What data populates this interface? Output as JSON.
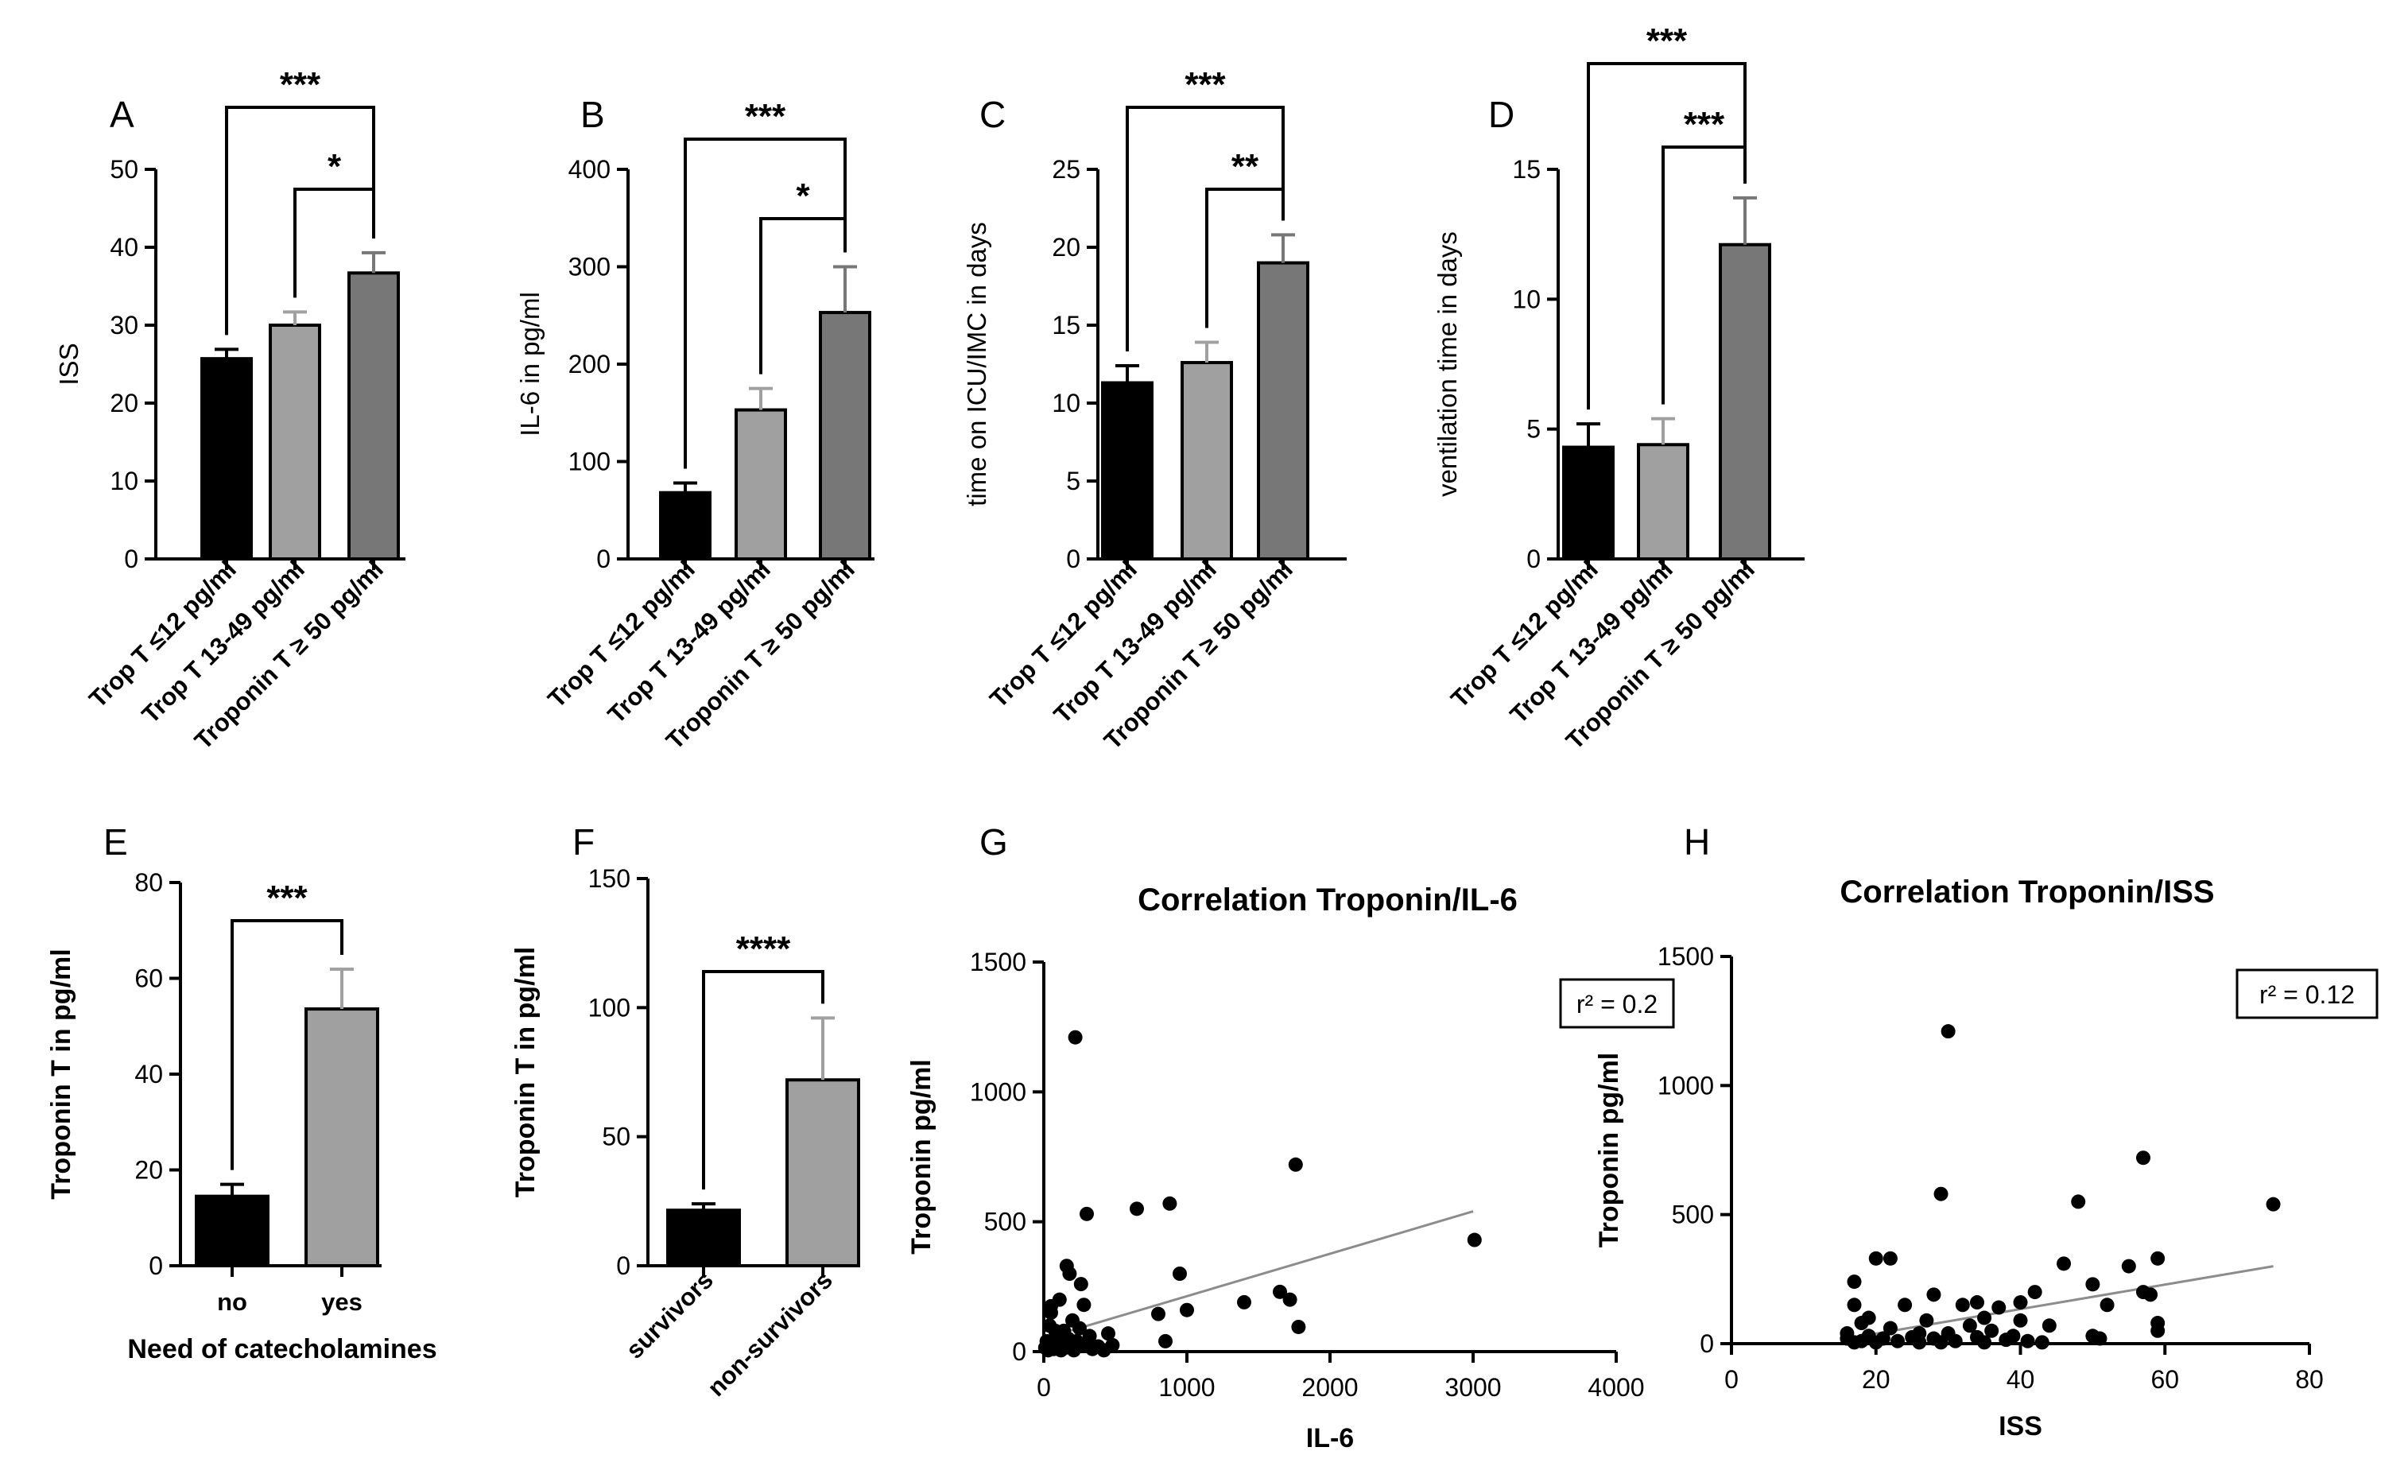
{
  "figure": {
    "background": "#ffffff"
  },
  "colors": {
    "black": "#000000",
    "light_gray": "#a0a0a0",
    "dark_gray": "#777777",
    "regression": "#8c8c8c",
    "points": "#000000"
  },
  "chart_data": [
    {
      "panel": "A",
      "type": "bar",
      "categories": [
        "Trop T ≤12 pg/ml",
        "Trop T 13-49 pg/ml",
        "Troponin T ≥ 50 pg/ml"
      ],
      "values": [
        25.7,
        30.0,
        36.7
      ],
      "errors": [
        1.2,
        1.7,
        2.6
      ],
      "colors": [
        "#000000",
        "#a0a0a0",
        "#777777"
      ],
      "ylabel": "ISS",
      "ylim": [
        0,
        50
      ],
      "yticks": [
        "0",
        "10",
        "20",
        "30",
        "40",
        "50"
      ],
      "brackets": [
        {
          "from": 0,
          "to": 2,
          "label": "***"
        },
        {
          "from": 1,
          "to": 2,
          "label": "*"
        }
      ]
    },
    {
      "panel": "B",
      "type": "bar",
      "categories": [
        "Trop T ≤12 pg/ml",
        "Trop T 13-49 pg/ml",
        "Troponin T ≥ 50 pg/ml"
      ],
      "values": [
        68,
        153,
        253
      ],
      "errors": [
        10,
        22,
        47
      ],
      "colors": [
        "#000000",
        "#a0a0a0",
        "#777777"
      ],
      "ylabel": "IL-6 in pg/ml",
      "ylim": [
        0,
        400
      ],
      "yticks": [
        "0",
        "100",
        "200",
        "300",
        "400"
      ],
      "brackets": [
        {
          "from": 0,
          "to": 2,
          "label": "***"
        },
        {
          "from": 1,
          "to": 2,
          "label": "*"
        }
      ]
    },
    {
      "panel": "C",
      "type": "bar",
      "categories": [
        "Trop T ≤12 pg/ml",
        "Trop T 13-49 pg/ml",
        "Troponin T ≥ 50 pg/ml"
      ],
      "values": [
        11.3,
        12.6,
        19.0
      ],
      "errors": [
        1.1,
        1.3,
        1.8
      ],
      "colors": [
        "#000000",
        "#a0a0a0",
        "#777777"
      ],
      "ylabel": "time on ICU/IMC in days",
      "ylim": [
        0,
        25
      ],
      "yticks": [
        "0",
        "5",
        "10",
        "15",
        "20",
        "25"
      ],
      "brackets": [
        {
          "from": 0,
          "to": 2,
          "label": "***"
        },
        {
          "from": 1,
          "to": 2,
          "label": "**"
        }
      ]
    },
    {
      "panel": "D",
      "type": "bar",
      "categories": [
        "Trop T ≤12 pg/ml",
        "Trop T 13-49 pg/ml",
        "Troponin T ≥ 50 pg/ml"
      ],
      "values": [
        4.3,
        4.4,
        12.1
      ],
      "errors": [
        0.9,
        1.0,
        1.8
      ],
      "colors": [
        "#000000",
        "#a0a0a0",
        "#777777"
      ],
      "ylabel": "ventilation time in days",
      "ylim": [
        0,
        15
      ],
      "yticks": [
        "0",
        "5",
        "10",
        "15"
      ],
      "brackets": [
        {
          "from": 0,
          "to": 2,
          "label": "***"
        },
        {
          "from": 1,
          "to": 2,
          "label": "***"
        }
      ]
    },
    {
      "panel": "E",
      "type": "bar",
      "categories": [
        "no",
        "yes"
      ],
      "values": [
        14.5,
        53.6
      ],
      "errors": [
        2.5,
        8.3
      ],
      "colors": [
        "#000000",
        "#a0a0a0"
      ],
      "ylabel": "Troponin T in pg/ml",
      "xlabel": "Need of catecholamines",
      "ylim": [
        0,
        80
      ],
      "yticks": [
        "0",
        "20",
        "40",
        "60",
        "80"
      ],
      "brackets": [
        {
          "from": 0,
          "to": 1,
          "label": "***"
        }
      ]
    },
    {
      "panel": "F",
      "type": "bar",
      "categories": [
        "survivors",
        "non-survivors"
      ],
      "values": [
        21.5,
        72
      ],
      "errors": [
        2.5,
        24
      ],
      "colors": [
        "#000000",
        "#a0a0a0"
      ],
      "ylabel": "Troponin T in pg/ml",
      "ylim": [
        0,
        150
      ],
      "yticks": [
        "0",
        "50",
        "100",
        "150"
      ],
      "brackets": [
        {
          "from": 0,
          "to": 1,
          "label": "****"
        }
      ]
    },
    {
      "panel": "G",
      "type": "scatter",
      "title": "Correlation Troponin/IL-6",
      "xlabel": "IL-6",
      "ylabel": "Troponin pg/ml",
      "xlim": [
        0,
        4000
      ],
      "ylim": [
        0,
        1500
      ],
      "xticks": [
        "0",
        "1000",
        "2000",
        "3000",
        "4000"
      ],
      "yticks": [
        "0",
        "500",
        "1000",
        "1500"
      ],
      "annotation": "r² = 0.2",
      "regression": {
        "x": [
          30,
          3000
        ],
        "y": [
          55,
          540
        ]
      },
      "points": [
        [
          10,
          15
        ],
        [
          20,
          40
        ],
        [
          30,
          5
        ],
        [
          40,
          100
        ],
        [
          50,
          150
        ],
        [
          50,
          175
        ],
        [
          60,
          30
        ],
        [
          70,
          10
        ],
        [
          80,
          80
        ],
        [
          90,
          25
        ],
        [
          100,
          60
        ],
        [
          110,
          200
        ],
        [
          120,
          5
        ],
        [
          130,
          35
        ],
        [
          140,
          80
        ],
        [
          150,
          15
        ],
        [
          160,
          330
        ],
        [
          170,
          50
        ],
        [
          180,
          300
        ],
        [
          190,
          20
        ],
        [
          200,
          120
        ],
        [
          210,
          5
        ],
        [
          220,
          1210
        ],
        [
          230,
          40
        ],
        [
          250,
          90
        ],
        [
          260,
          260
        ],
        [
          270,
          25
        ],
        [
          280,
          180
        ],
        [
          300,
          530
        ],
        [
          320,
          60
        ],
        [
          340,
          10
        ],
        [
          380,
          20
        ],
        [
          420,
          5
        ],
        [
          450,
          70
        ],
        [
          480,
          25
        ],
        [
          650,
          550
        ],
        [
          800,
          145
        ],
        [
          850,
          40
        ],
        [
          880,
          570
        ],
        [
          950,
          300
        ],
        [
          1000,
          160
        ],
        [
          1400,
          190
        ],
        [
          1650,
          230
        ],
        [
          1720,
          200
        ],
        [
          1780,
          95
        ],
        [
          1760,
          720
        ],
        [
          3010,
          430
        ]
      ]
    },
    {
      "panel": "H",
      "type": "scatter",
      "title": "Correlation Troponin/ISS",
      "xlabel": "ISS",
      "ylabel": "Troponin pg/ml",
      "xlim": [
        0,
        80
      ],
      "ylim": [
        0,
        1500
      ],
      "xticks": [
        "0",
        "20",
        "40",
        "60",
        "80"
      ],
      "yticks": [
        "0",
        "500",
        "1000",
        "1500"
      ],
      "annotation": "r² = 0.12",
      "regression": {
        "x": [
          16,
          75
        ],
        "y": [
          20,
          300
        ]
      },
      "points": [
        [
          16,
          20
        ],
        [
          16,
          40
        ],
        [
          17,
          5
        ],
        [
          17,
          150
        ],
        [
          17,
          240
        ],
        [
          18,
          80
        ],
        [
          18,
          10
        ],
        [
          19,
          30
        ],
        [
          19,
          100
        ],
        [
          20,
          5
        ],
        [
          20,
          330
        ],
        [
          21,
          20
        ],
        [
          22,
          330
        ],
        [
          22,
          60
        ],
        [
          23,
          10
        ],
        [
          24,
          150
        ],
        [
          25,
          25
        ],
        [
          26,
          5
        ],
        [
          26,
          40
        ],
        [
          27,
          90
        ],
        [
          28,
          20
        ],
        [
          28,
          190
        ],
        [
          29,
          5
        ],
        [
          29,
          580
        ],
        [
          30,
          1210
        ],
        [
          30,
          40
        ],
        [
          31,
          10
        ],
        [
          32,
          150
        ],
        [
          33,
          70
        ],
        [
          34,
          25
        ],
        [
          34,
          160
        ],
        [
          35,
          5
        ],
        [
          35,
          100
        ],
        [
          36,
          50
        ],
        [
          37,
          140
        ],
        [
          38,
          15
        ],
        [
          39,
          30
        ],
        [
          40,
          90
        ],
        [
          40,
          160
        ],
        [
          41,
          10
        ],
        [
          42,
          200
        ],
        [
          43,
          5
        ],
        [
          44,
          70
        ],
        [
          46,
          310
        ],
        [
          48,
          550
        ],
        [
          50,
          230
        ],
        [
          50,
          30
        ],
        [
          51,
          20
        ],
        [
          52,
          150
        ],
        [
          55,
          300
        ],
        [
          57,
          720
        ],
        [
          57,
          200
        ],
        [
          58,
          190
        ],
        [
          59,
          330
        ],
        [
          59,
          80
        ],
        [
          59,
          50
        ],
        [
          75,
          540
        ]
      ]
    }
  ]
}
